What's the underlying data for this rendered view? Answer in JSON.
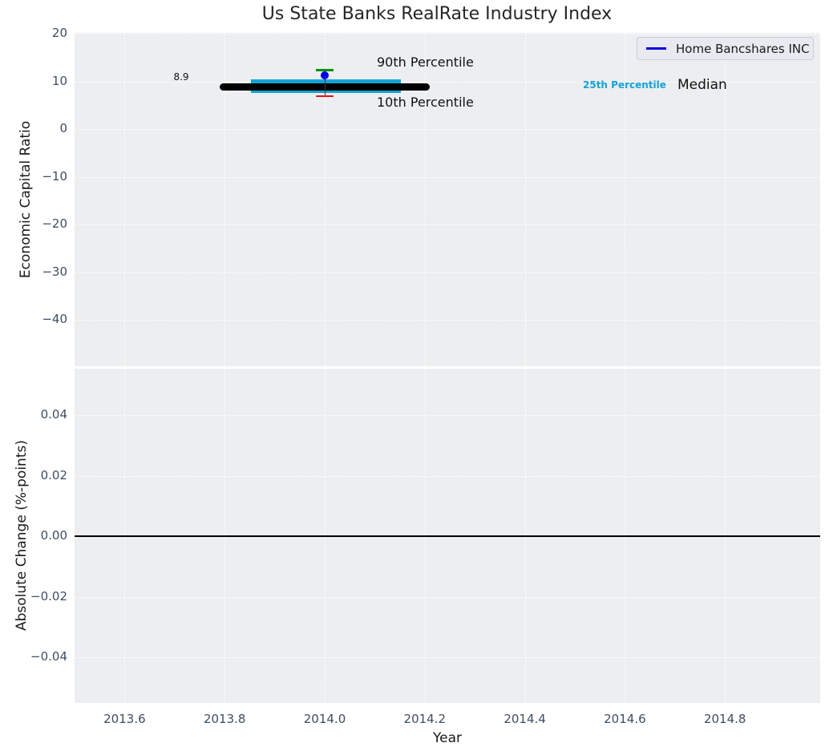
{
  "colors": {
    "plot_bg": "#eceef0",
    "grid_white": "#ffffff",
    "tick_label": "#3f4d63",
    "text_dark": "#262626",
    "series_blue": "#0000e0",
    "iqr_cyan": "#14a2d6",
    "p90_green": "#008f00",
    "p10_red": "#ee1111",
    "median_black": "#000000"
  },
  "chart_data": [
    {
      "type": "boxplot",
      "title": "Us State Banks RealRate Industry Index",
      "ylabel": "Economic Capital Ratio",
      "xlim": [
        2013.5,
        2014.99
      ],
      "ylim": [
        -49.7,
        20.2
      ],
      "grid": "on",
      "xticks": [
        2013.6,
        2013.8,
        2014.0,
        2014.2,
        2014.4,
        2014.6,
        2014.8
      ],
      "xticklabels": [
        "2013.6",
        "2013.8",
        "2014.0",
        "2014.2",
        "2014.4",
        "2014.6",
        "2014.8"
      ],
      "yticks": [
        20,
        10,
        0,
        -10,
        -20,
        -30,
        -40
      ],
      "yticklabels": [
        "20",
        "10",
        "0",
        "−10",
        "−20",
        "−30",
        "−40"
      ],
      "box": {
        "x_center": 2014.0,
        "median": 8.9,
        "median_x_span": [
          2013.79,
          2014.21
        ],
        "iqr": [
          7.5,
          10.5
        ],
        "iqr_x_span": [
          2013.852,
          2014.152
        ],
        "p90": 12.3,
        "p10": 6.9,
        "cap_half_width": 0.017
      },
      "company_point": {
        "name": "Home Bancshares INC",
        "x": 2014.0,
        "y": 11.2
      },
      "legend": {
        "position": "upper right",
        "entries": [
          {
            "label": "Home Bancshares INC"
          }
        ]
      },
      "annotations": {
        "median_value": "8.9",
        "p90": "90th Percentile",
        "p10": "10th Percentile",
        "p25": "25th Percentile",
        "median": "Median"
      }
    },
    {
      "type": "line",
      "ylabel": "Absolute Change (%-points)",
      "xlabel": "Year",
      "xlim": [
        2013.5,
        2014.99
      ],
      "ylim": [
        -0.055,
        0.0554
      ],
      "grid": "on",
      "xticks": [
        2013.6,
        2013.8,
        2014.0,
        2014.2,
        2014.4,
        2014.6,
        2014.8
      ],
      "yticks": [
        0.04,
        0.02,
        0.0,
        -0.02,
        -0.04
      ],
      "yticklabels": [
        "0.04",
        "0.02",
        "0.00",
        "−0.02",
        "−0.04"
      ],
      "zero_line": 0.0,
      "series": []
    }
  ]
}
